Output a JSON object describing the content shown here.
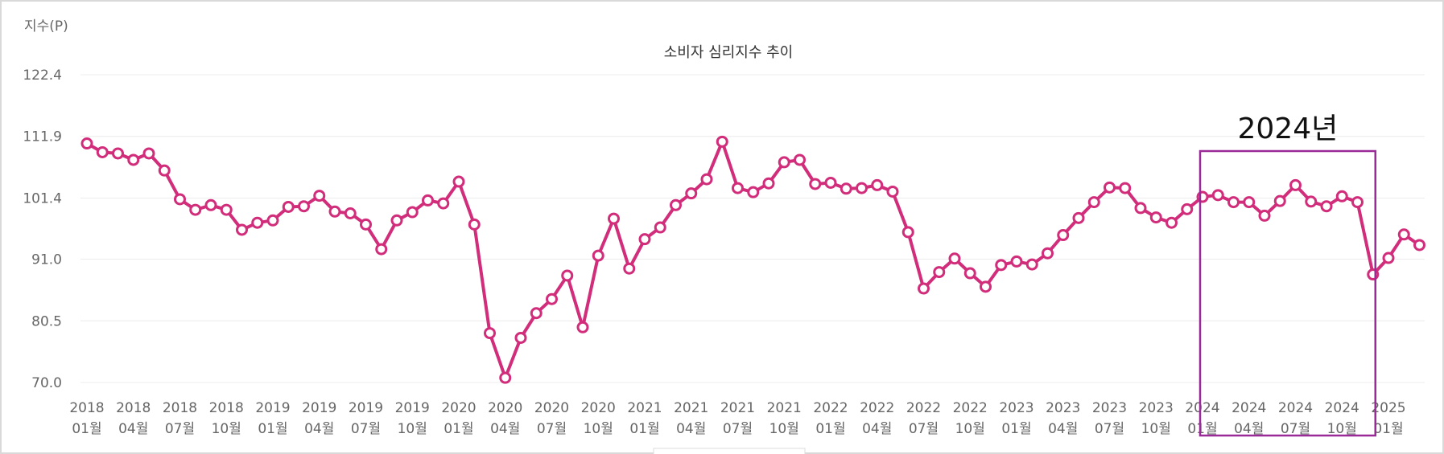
{
  "chart_data": {
    "type": "line",
    "title": "소비자 심리지수 추이",
    "ylabel": "지수(P)",
    "xlabel": "",
    "ylim": [
      70.0,
      122.4
    ],
    "yticks": [
      "122.4",
      "111.9",
      "101.4",
      "91.0",
      "80.5",
      "70.0"
    ],
    "grid": true,
    "colors": {
      "series": "#d12d7b",
      "highlight": "#9a2a98"
    },
    "x_tick_labels": [
      [
        "2018",
        "01월"
      ],
      [
        "2018",
        "04월"
      ],
      [
        "2018",
        "07월"
      ],
      [
        "2018",
        "10월"
      ],
      [
        "2019",
        "01월"
      ],
      [
        "2019",
        "04월"
      ],
      [
        "2019",
        "07월"
      ],
      [
        "2019",
        "10월"
      ],
      [
        "2020",
        "01월"
      ],
      [
        "2020",
        "04월"
      ],
      [
        "2020",
        "07월"
      ],
      [
        "2020",
        "10월"
      ],
      [
        "2021",
        "01월"
      ],
      [
        "2021",
        "04월"
      ],
      [
        "2021",
        "07월"
      ],
      [
        "2021",
        "10월"
      ],
      [
        "2022",
        "01월"
      ],
      [
        "2022",
        "04월"
      ],
      [
        "2022",
        "07월"
      ],
      [
        "2022",
        "10월"
      ],
      [
        "2023",
        "01월"
      ],
      [
        "2023",
        "04월"
      ],
      [
        "2023",
        "07월"
      ],
      [
        "2023",
        "10월"
      ],
      [
        "2024",
        "01월"
      ],
      [
        "2024",
        "04월"
      ],
      [
        "2024",
        "07월"
      ],
      [
        "2024",
        "10월"
      ],
      [
        "2025",
        "01월"
      ]
    ],
    "series": [
      {
        "start": "2018-01",
        "values": [
          110.7,
          109.2,
          109.0,
          107.9,
          109.0,
          106.1,
          101.2,
          99.4,
          100.2,
          99.4,
          96.0,
          97.2,
          97.6,
          99.9,
          100.0,
          101.8,
          99.1,
          98.8,
          96.9,
          92.7,
          97.6,
          99.0,
          101.0,
          100.5,
          104.2,
          96.9,
          78.4,
          70.8,
          77.6,
          81.8,
          84.2,
          88.2,
          79.4,
          91.6,
          97.9,
          89.4,
          94.4,
          96.4,
          100.2,
          102.2,
          104.6,
          111.0,
          103.1,
          102.4,
          103.9,
          107.5,
          107.9,
          103.8,
          104.0,
          103.0,
          103.1,
          103.6,
          102.5,
          95.6,
          86.0,
          88.8,
          91.1,
          88.6,
          86.3,
          90.0,
          90.6,
          90.1,
          92.0,
          95.1,
          98.0,
          100.7,
          103.2,
          103.1,
          99.7,
          98.1,
          97.2,
          99.5,
          101.6,
          101.9,
          100.7,
          100.7,
          98.4,
          100.9,
          103.6,
          100.8,
          100.0,
          101.7,
          100.7,
          88.4,
          91.2,
          95.2,
          93.4
        ]
      }
    ],
    "highlight": {
      "label": "2024년",
      "from": "2024-01",
      "to": "2024-12"
    }
  }
}
